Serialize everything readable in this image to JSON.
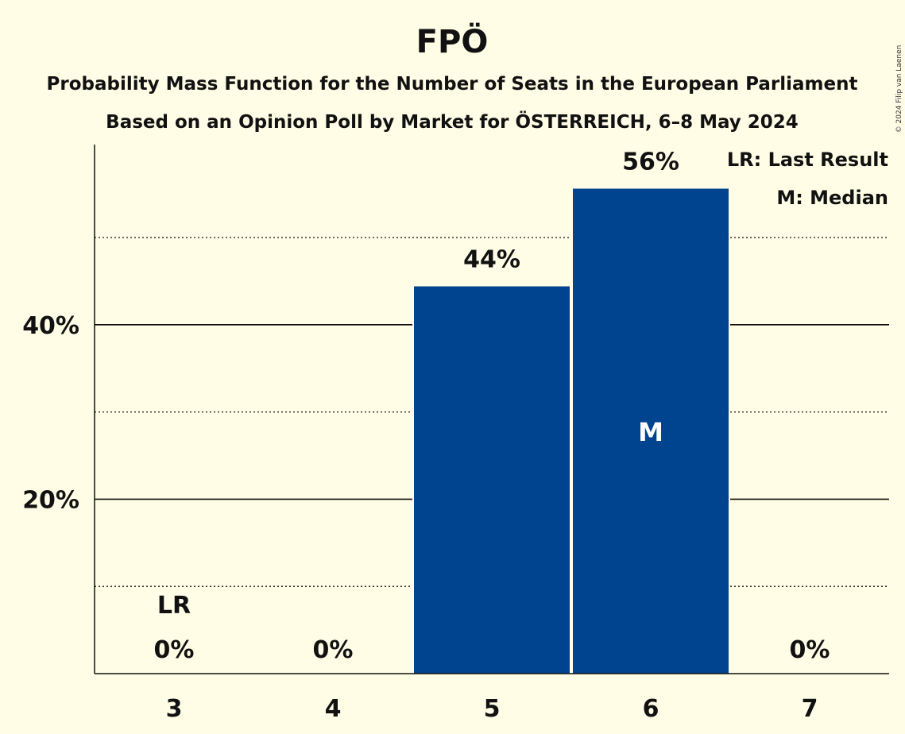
{
  "chart_data": {
    "type": "bar",
    "title": "FPÖ",
    "subtitles": [
      "Probability Mass Function for the Number of Seats in the European Parliament",
      "Based on an Opinion Poll by Market for ÖSTERREICH, 6–8 May 2024"
    ],
    "categories": [
      "3",
      "4",
      "5",
      "6",
      "7"
    ],
    "values": [
      0,
      0,
      44.4,
      55.6,
      0
    ],
    "value_labels": [
      "0%",
      "0%",
      "44%",
      "56%",
      "0%"
    ],
    "ylim": [
      0,
      60
    ],
    "y_major_ticks": [
      20,
      40
    ],
    "y_major_tick_labels": [
      "20%",
      "40%"
    ],
    "y_minor_gridlines": [
      10,
      30,
      50
    ],
    "bar_color": "#00448f",
    "last_result_category": "3",
    "last_result_marker": "LR",
    "median_category": "6",
    "median_marker": "M",
    "legend": [
      "LR: Last Result",
      "M: Median"
    ],
    "legend_placement": "top-right",
    "copyright": "© 2024 Filip van Laenen"
  }
}
